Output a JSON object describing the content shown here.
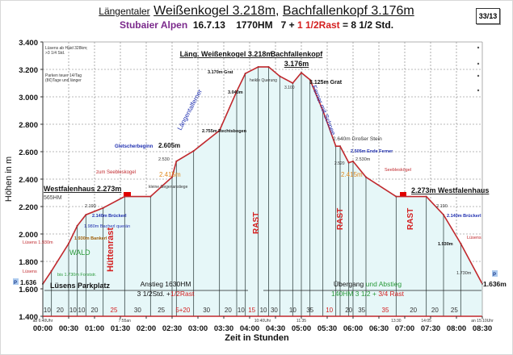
{
  "header": {
    "title_prefix": "Längentaler",
    "title_peak1": "Weißenkogel 3.218m,",
    "title_peak2": "Bachfallenkopf 3.176m",
    "region": "Stubaier Alpen",
    "date": "16.7.13",
    "elevation_gain": "1770HM",
    "time_part1": "7 +",
    "time_rest": "1 1/2Rast",
    "time_total": "= 8 1/2 Std.",
    "page_badge": "33/13"
  },
  "colors": {
    "profile_line": "#c0282d",
    "fill": "#e6f7f8",
    "region_purple": "#7b2a8c",
    "rest_red": "#d42020",
    "blue_label": "#2030b0",
    "orange_label": "#e08a1e",
    "green_label": "#2a9a3a"
  },
  "chart_data": {
    "type": "area",
    "title": "Längentaler Weißenkogel 3.218m, Bachfallenkopf 3.176m",
    "xlabel": "Zeit in Stunden",
    "ylabel": "Höhen in m",
    "ylim": [
      1400,
      3400
    ],
    "yticks": [
      "1.400",
      "1.600",
      "1.800",
      "2.000",
      "2.200",
      "2.400",
      "2.600",
      "2.800",
      "3.000",
      "3.200",
      "3.400"
    ],
    "xticks": [
      "00:00",
      "00:30",
      "01:00",
      "01:30",
      "02:00",
      "02:30",
      "03:00",
      "03:30",
      "04:00",
      "04:30",
      "05:00",
      "05:30",
      "06:00",
      "06:30",
      "07:00",
      "07:30",
      "08:00",
      "08:30"
    ],
    "grid": true,
    "x_minutes": [
      0,
      10,
      30,
      40,
      50,
      70,
      95,
      125,
      150,
      155,
      175,
      205,
      225,
      235,
      250,
      262,
      275,
      290,
      300,
      310,
      325,
      340,
      345,
      355,
      360,
      375,
      410,
      445,
      465,
      485,
      510
    ],
    "elevation_m": [
      1636,
      1730,
      1930,
      2060,
      2140,
      2190,
      2273,
      2273,
      2415,
      2530,
      2605,
      2755,
      3040,
      3170,
      3218,
      3218,
      3150,
      3100,
      3176,
      3125,
      2900,
      2640,
      2640,
      2520,
      2530,
      2415,
      2273,
      2273,
      2140,
      1930,
      1636
    ],
    "segment_minutes": [
      {
        "label": "10",
        "red": false
      },
      {
        "label": "20",
        "red": false
      },
      {
        "label": "10",
        "red": false
      },
      {
        "label": "10",
        "red": false
      },
      {
        "label": "20",
        "red": false
      },
      {
        "label": "25",
        "red": true
      },
      {
        "label": "30",
        "red": false
      },
      {
        "label": "25",
        "red": false
      },
      {
        "label": "5+20",
        "red": true
      },
      {
        "label": "30",
        "red": false
      },
      {
        "label": "20",
        "red": false
      },
      {
        "label": "10",
        "red": false
      },
      {
        "label": "15",
        "red": true
      },
      {
        "label": "10",
        "red": false
      },
      {
        "label": "30",
        "red": false
      },
      {
        "label": "10",
        "red": false
      },
      {
        "label": "35",
        "red": false
      },
      {
        "label": "10",
        "red": true
      },
      {
        "label": "20",
        "red": false
      },
      {
        "label": "35",
        "red": false
      },
      {
        "label": "35",
        "red": true
      },
      {
        "label": "20",
        "red": false
      },
      {
        "label": "20",
        "red": false
      },
      {
        "label": "25",
        "red": false
      }
    ],
    "clock_times": [
      "ab 6:40Uhr",
      "7:55an",
      "10:40Uhr",
      "11:35",
      "13:30",
      "14:05",
      "an 15:10Uhr"
    ],
    "annotations": {
      "peak1": "Läng. Weißenkogel 3.218m",
      "peak2_line1": "Bachfallenkopf",
      "peak2_line2": "3.176m",
      "grat_3170": "3.170m Grat",
      "heikle": "heikle Querung",
      "p3100": "3.100",
      "grat_3125": "3.125m Grat",
      "p3040": "3.040m",
      "ferner1": "Längentalferner",
      "ferner2": "Ferner mit Schnee",
      "rechtsbogen": "2.755m Rechtsbogen",
      "gletscher": "Gletscherbeginn",
      "p2605": "2.605m",
      "p2530a": "2.530",
      "seeblas_left": "zum Seebleskogel",
      "p2415_left": "2.415m",
      "gegenanstiege": "kleine Gegenanstiege",
      "grosser_stein": "2.640m Großer Stein",
      "ende_ferner": "2.505m Ende Ferner",
      "p2520": "2.520",
      "p2530b": "2.530m",
      "p2415_right": "2.415m",
      "seeblas_right": "Seebleskögel",
      "westfalen_left": "Westfalenhaus 2.273m",
      "hm565": "565HM",
      "westfalen_right": "2.273m Westfalenhaus",
      "p2190a": "2.190",
      "bruckerl_left": "2.140m Brückerl",
      "bacherl": "1.980m Bacherl querän",
      "bankerl": "1.930m Bankerl",
      "luesens1930": "Lüsens 1.930m",
      "wald": "WALD",
      "luesens_arrow": "Lüsens",
      "forststr": "bis 1.730m Forststr.",
      "parkplatz": "Lüsens Parkplatz",
      "p1636_left": "1.636",
      "p_icon": "P",
      "huettenrast": "Hüttenrast",
      "rast": "RAST",
      "anstieg_l1": "Anstieg 1630HM",
      "anstieg_l2a": "3 1/2Std. +",
      "anstieg_l2b": "1/2Rast",
      "uebergang_a": "Übergang",
      "uebergang_b": "und Abstieg",
      "abstieg_l2a": "140HM 3 1/2 +",
      "abstieg_l2b": "3/4 Rast",
      "p2190b": "2.190",
      "bruckerl_right": "2.140m Brückerl",
      "luesens_right": "Lüsens",
      "p1930_right": "1.930m",
      "p1730_right": "1.730m",
      "p1636_right": "1.636m",
      "note1_l1": "Lüsens ab Haid 328km;",
      "note1_l2": ">3 1/4 Std.",
      "note2_l1": "Parken teuer 14/Tag",
      "note2_l2": "(8€)Tage und länger"
    }
  }
}
